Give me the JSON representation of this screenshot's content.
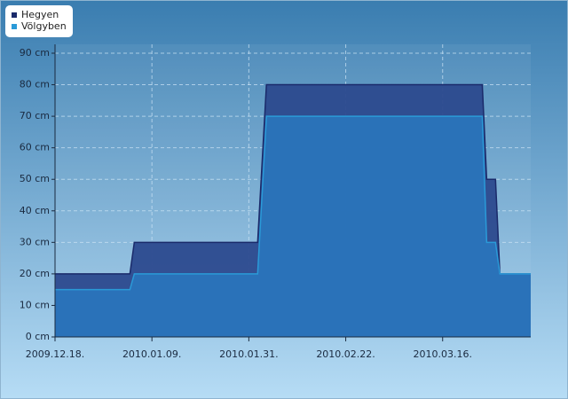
{
  "chart_data": {
    "type": "area",
    "x": [
      "2009-12-18",
      "2010-01-04",
      "2010-01-05",
      "2010-02-02",
      "2010-02-04",
      "2010-03-25",
      "2010-03-26",
      "2010-03-28",
      "2010-03-29",
      "2010-04-05"
    ],
    "series": [
      {
        "name": "Hegyen",
        "color": "#2c4a8e",
        "line_color": "#1a2a6a",
        "values": [
          20,
          20,
          30,
          30,
          80,
          80,
          50,
          50,
          20,
          20
        ]
      },
      {
        "name": "Völgyben",
        "color": "#2a74ba",
        "line_color": "#2a9ad8",
        "values": [
          15,
          15,
          20,
          20,
          70,
          70,
          30,
          30,
          20,
          20
        ]
      }
    ],
    "xlim": [
      "2009-12-18",
      "2010-04-05"
    ],
    "xticks": [
      {
        "value": "2009-12-18",
        "label": "2009.12.18."
      },
      {
        "value": "2010-01-09",
        "label": "2010.01.09."
      },
      {
        "value": "2010-01-31",
        "label": "2010.01.31."
      },
      {
        "value": "2010-02-22",
        "label": "2010.02.22."
      },
      {
        "value": "2010-03-16",
        "label": "2010.03.16."
      }
    ],
    "ylim": [
      0,
      90
    ],
    "yticks": [
      {
        "value": 0,
        "label": "0 cm"
      },
      {
        "value": 10,
        "label": "10 cm"
      },
      {
        "value": 20,
        "label": "20 cm"
      },
      {
        "value": 30,
        "label": "30 cm"
      },
      {
        "value": 40,
        "label": "40 cm"
      },
      {
        "value": 50,
        "label": "50 cm"
      },
      {
        "value": 60,
        "label": "60 cm"
      },
      {
        "value": 70,
        "label": "70 cm"
      },
      {
        "value": 80,
        "label": "80 cm"
      },
      {
        "value": 90,
        "label": "90 cm"
      }
    ],
    "grid": true,
    "legend": "top-left"
  }
}
